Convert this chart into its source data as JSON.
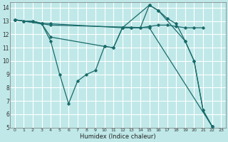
{
  "xlabel": "Humidex (Indice chaleur)",
  "bg_color": "#c0e8e8",
  "grid_color": "#ffffff",
  "line_color": "#1a6b6b",
  "xlim": [
    -0.5,
    23.5
  ],
  "ylim": [
    5,
    14.4
  ],
  "xticks": [
    0,
    1,
    2,
    3,
    4,
    5,
    6,
    7,
    8,
    9,
    10,
    11,
    12,
    13,
    14,
    15,
    16,
    17,
    18,
    19,
    20,
    21,
    22,
    23
  ],
  "yticks": [
    5,
    6,
    7,
    8,
    9,
    10,
    11,
    12,
    13,
    14
  ],
  "line1_x": [
    0,
    1,
    2,
    3,
    4,
    12,
    13,
    14,
    15,
    16,
    17,
    18,
    19,
    20,
    21
  ],
  "line1_y": [
    13.1,
    13.0,
    13.0,
    12.85,
    12.8,
    12.5,
    12.5,
    12.5,
    12.6,
    12.7,
    12.7,
    12.6,
    12.5,
    12.5,
    12.5
  ],
  "line2_x": [
    0,
    1,
    2,
    3,
    4,
    5,
    6,
    7,
    8,
    9,
    10,
    11,
    12,
    13,
    14,
    15,
    16,
    17,
    18,
    19,
    20,
    21,
    22
  ],
  "line2_y": [
    13.1,
    13.0,
    13.0,
    12.8,
    11.5,
    9.0,
    6.8,
    8.5,
    9.0,
    9.3,
    11.1,
    11.0,
    12.5,
    12.5,
    12.5,
    14.2,
    13.8,
    13.2,
    12.8,
    11.5,
    10.0,
    6.3,
    5.1
  ],
  "line3_x": [
    0,
    4,
    15,
    22
  ],
  "line3_y": [
    13.1,
    12.7,
    12.5,
    5.1
  ],
  "line4_x": [
    0,
    3,
    4,
    10,
    11,
    12,
    15,
    16,
    19,
    20,
    21,
    22
  ],
  "line4_y": [
    13.1,
    12.8,
    11.8,
    11.1,
    11.0,
    12.5,
    14.2,
    13.8,
    11.5,
    10.0,
    6.3,
    5.1
  ]
}
